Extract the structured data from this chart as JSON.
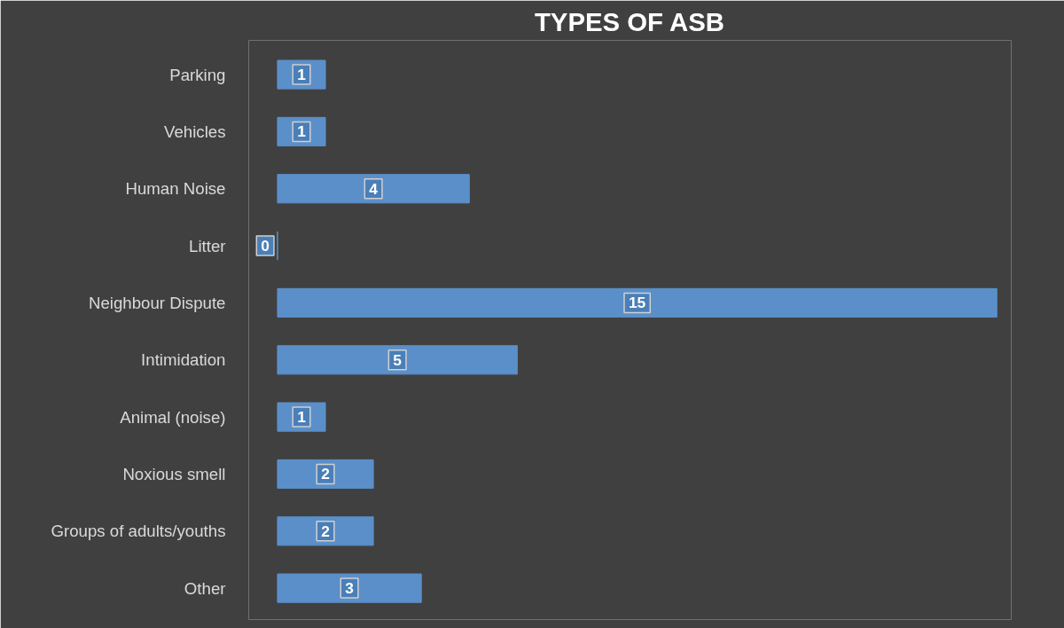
{
  "chart_data": {
    "type": "bar",
    "orientation": "horizontal",
    "title": "TYPES OF ASB",
    "categories": [
      "Parking",
      "Vehicles",
      "Human Noise",
      "Litter",
      "Neighbour Dispute",
      "Intimidation",
      "Animal (noise)",
      "Noxious smell",
      "Groups of adults/youths",
      "Other"
    ],
    "values": [
      1,
      1,
      4,
      0,
      15,
      5,
      1,
      2,
      2,
      3
    ],
    "color": "#5b8fc9",
    "data_labels": true
  }
}
